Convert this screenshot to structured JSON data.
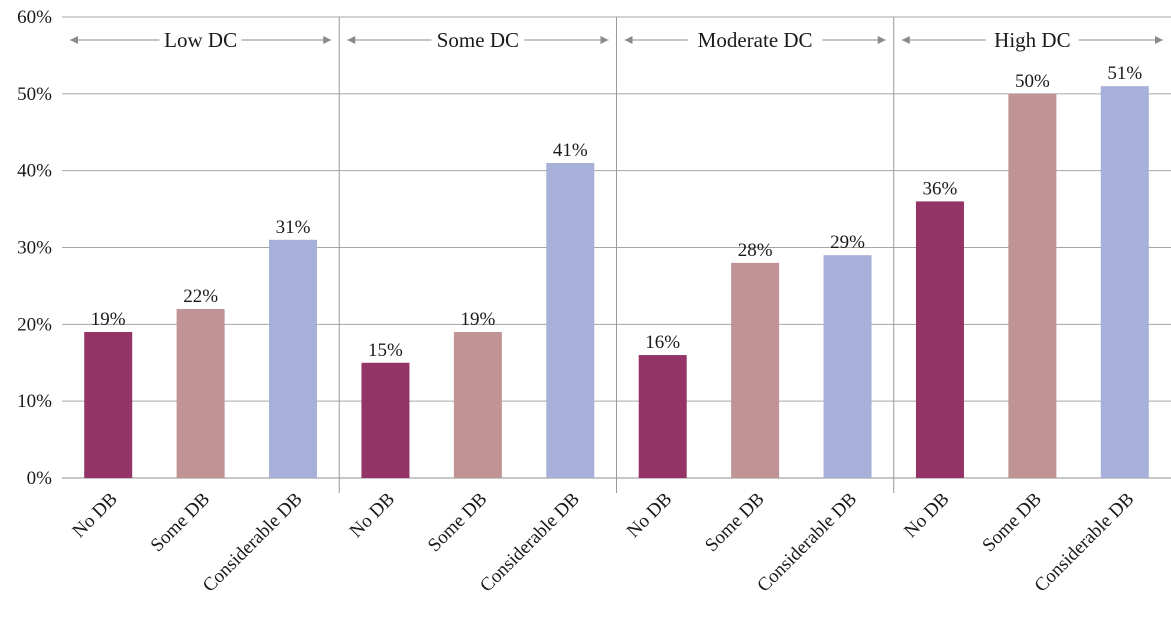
{
  "chart_data": {
    "type": "bar",
    "ylim": [
      0,
      60
    ],
    "y_ticks": [
      "0%",
      "10%",
      "20%",
      "30%",
      "40%",
      "50%",
      "60%"
    ],
    "grid": true,
    "value_suffix": "%",
    "categories": [
      "No DB",
      "Some DB",
      "Considerable DB"
    ],
    "colors": [
      "#943366",
      "#c09494",
      "#a7b0d8"
    ],
    "groups": [
      {
        "label": "Low DC",
        "values": [
          19,
          22,
          31
        ]
      },
      {
        "label": "Some DC",
        "values": [
          15,
          19,
          41
        ]
      },
      {
        "label": "Moderate DC",
        "values": [
          16,
          28,
          29
        ]
      },
      {
        "label": "High DC",
        "values": [
          36,
          50,
          51
        ]
      }
    ]
  }
}
